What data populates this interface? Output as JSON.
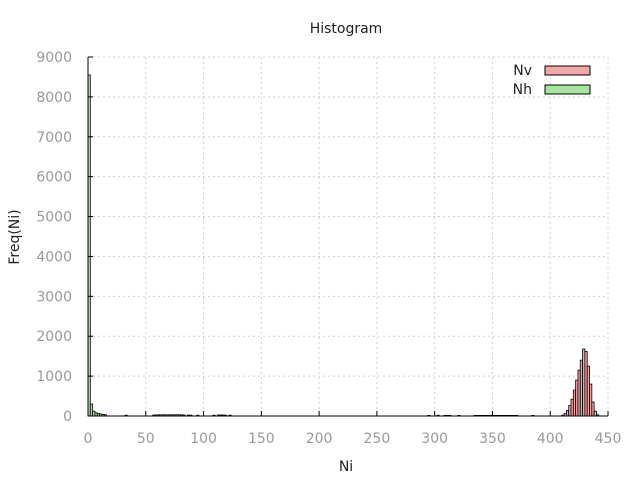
{
  "chart_data": {
    "type": "bar",
    "title": "Histogram",
    "xlabel": "Ni",
    "ylabel": "Freq(Ni)",
    "xlim": [
      0,
      450
    ],
    "ylim": [
      0,
      9000
    ],
    "x_ticks": [
      "0",
      "50",
      "100",
      "150",
      "200",
      "250",
      "300",
      "350",
      "400",
      "450"
    ],
    "y_ticks": [
      "0",
      "1000",
      "2000",
      "3000",
      "4000",
      "5000",
      "6000",
      "7000",
      "8000",
      "9000"
    ],
    "grid": true,
    "legend_position": "top-right",
    "bin_width": 2,
    "series": [
      {
        "name": "Nv",
        "color": "#f4a6a6",
        "points": [
          [
            410,
            20
          ],
          [
            412,
            60
          ],
          [
            414,
            140
          ],
          [
            416,
            260
          ],
          [
            418,
            420
          ],
          [
            420,
            650
          ],
          [
            422,
            900
          ],
          [
            424,
            1150
          ],
          [
            426,
            1400
          ],
          [
            428,
            1680
          ],
          [
            430,
            1620
          ],
          [
            432,
            1250
          ],
          [
            434,
            800
          ],
          [
            436,
            350
          ],
          [
            438,
            120
          ],
          [
            440,
            30
          ]
        ]
      },
      {
        "name": "Nh",
        "color": "#a8e4a0",
        "points": [
          [
            0,
            8550
          ],
          [
            2,
            300
          ],
          [
            4,
            120
          ],
          [
            6,
            80
          ],
          [
            8,
            60
          ],
          [
            10,
            50
          ],
          [
            12,
            40
          ],
          [
            14,
            30
          ],
          [
            32,
            20
          ],
          [
            56,
            25
          ],
          [
            58,
            25
          ],
          [
            60,
            30
          ],
          [
            62,
            30
          ],
          [
            64,
            30
          ],
          [
            66,
            30
          ],
          [
            68,
            30
          ],
          [
            70,
            30
          ],
          [
            72,
            30
          ],
          [
            74,
            30
          ],
          [
            76,
            30
          ],
          [
            78,
            30
          ],
          [
            80,
            30
          ],
          [
            82,
            25
          ],
          [
            86,
            25
          ],
          [
            88,
            20
          ],
          [
            94,
            20
          ],
          [
            108,
            20
          ],
          [
            112,
            25
          ],
          [
            114,
            25
          ],
          [
            116,
            25
          ],
          [
            118,
            20
          ],
          [
            122,
            20
          ],
          [
            294,
            15
          ],
          [
            302,
            20
          ],
          [
            308,
            15
          ],
          [
            310,
            15
          ],
          [
            312,
            15
          ],
          [
            320,
            15
          ],
          [
            334,
            15
          ],
          [
            336,
            15
          ],
          [
            338,
            15
          ],
          [
            340,
            15
          ],
          [
            342,
            15
          ],
          [
            344,
            15
          ],
          [
            346,
            15
          ],
          [
            348,
            15
          ],
          [
            350,
            15
          ],
          [
            352,
            15
          ],
          [
            354,
            15
          ],
          [
            356,
            15
          ],
          [
            358,
            15
          ],
          [
            360,
            15
          ],
          [
            362,
            15
          ],
          [
            364,
            15
          ],
          [
            366,
            15
          ],
          [
            368,
            15
          ],
          [
            370,
            15
          ],
          [
            384,
            15
          ]
        ]
      }
    ]
  }
}
